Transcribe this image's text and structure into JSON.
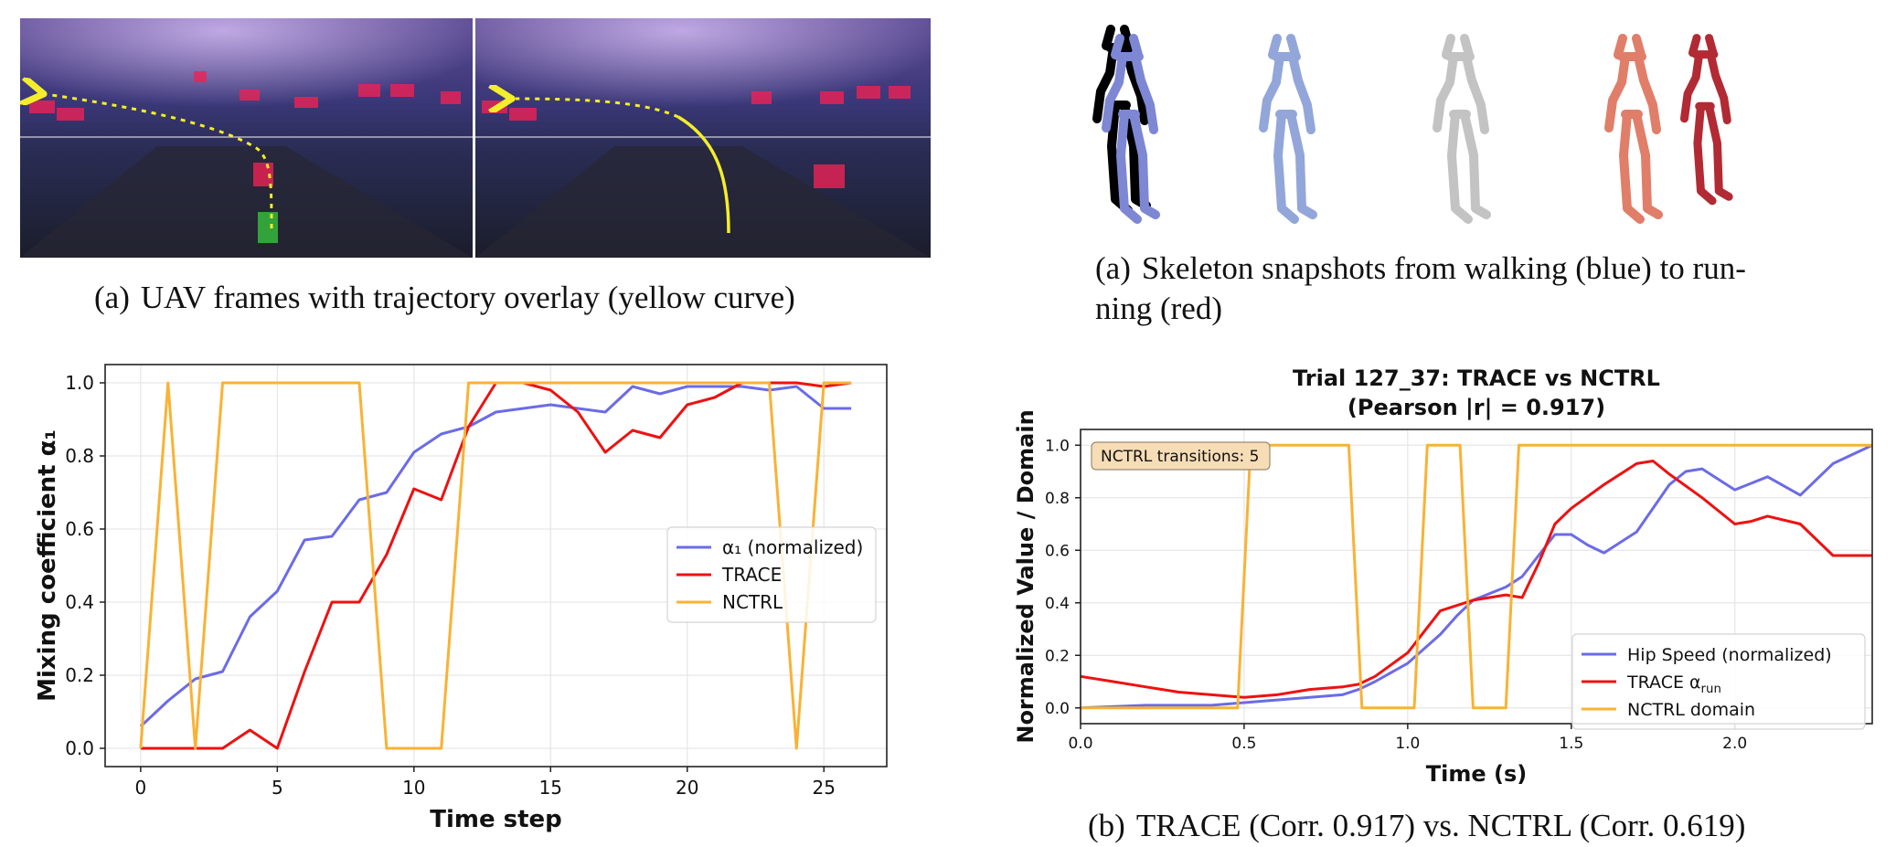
{
  "captions": {
    "uav": {
      "tag": "(a)",
      "text": "UAV frames with trajectory overlay (yellow curve)"
    },
    "skel_line1": {
      "tag": "(a)",
      "text": "Skeleton snapshots from walking (blue) to run-"
    },
    "skel_line2": "ning (red)",
    "trace": {
      "tag": "(b)",
      "text": "TRACE (Corr. 0.917) vs. NCTRL (Corr. 0.619)"
    }
  },
  "colors": {
    "blue": "#6b6be8",
    "red": "#ee1111",
    "orange": "#f9b234"
  },
  "chart_data": [
    {
      "type": "line",
      "xlabel": "Time step",
      "ylabel": "Mixing coefficient α₁",
      "xlim": [
        -1.3,
        27.3
      ],
      "ylim": [
        -0.05,
        1.05
      ],
      "xticks": [
        0,
        5,
        10,
        15,
        20,
        25
      ],
      "yticks": [
        "0.0",
        "0.2",
        "0.4",
        "0.6",
        "0.8",
        "1.0"
      ],
      "grid": true,
      "legend_position": "center-right",
      "series": [
        {
          "name": "α₁ (normalized)",
          "color": "#6b6be8",
          "x": [
            0,
            1,
            2,
            3,
            4,
            5,
            6,
            7,
            8,
            9,
            10,
            11,
            12,
            13,
            14,
            15,
            16,
            17,
            18,
            19,
            20,
            21,
            22,
            23,
            24,
            25,
            26
          ],
          "y": [
            0.06,
            0.13,
            0.19,
            0.21,
            0.36,
            0.43,
            0.57,
            0.58,
            0.68,
            0.7,
            0.81,
            0.86,
            0.88,
            0.92,
            0.93,
            0.94,
            0.93,
            0.92,
            0.99,
            0.97,
            0.99,
            0.99,
            0.99,
            0.98,
            0.99,
            0.93,
            0.93
          ]
        },
        {
          "name": "TRACE",
          "color": "#ee1111",
          "x": [
            0,
            1,
            2,
            3,
            4,
            5,
            6,
            7,
            8,
            9,
            10,
            11,
            12,
            13,
            14,
            15,
            16,
            17,
            18,
            19,
            20,
            21,
            22,
            23,
            24,
            25,
            26
          ],
          "y": [
            0.0,
            0.0,
            0.0,
            0.0,
            0.05,
            0.0,
            0.21,
            0.4,
            0.4,
            0.53,
            0.71,
            0.68,
            0.88,
            1.0,
            1.0,
            0.98,
            0.92,
            0.81,
            0.87,
            0.85,
            0.94,
            0.96,
            1.0,
            1.0,
            1.0,
            0.99,
            1.0
          ]
        },
        {
          "name": "NCTRL",
          "color": "#f9b234",
          "x": [
            0,
            1,
            2,
            3,
            4,
            5,
            6,
            7,
            8,
            9,
            10,
            11,
            12,
            13,
            14,
            15,
            16,
            17,
            18,
            19,
            20,
            21,
            22,
            23,
            24,
            25,
            26
          ],
          "y": [
            0,
            1,
            0,
            1,
            1,
            1,
            1,
            1,
            1,
            0,
            0,
            0,
            1,
            1,
            1,
            1,
            1,
            1,
            1,
            1,
            1,
            1,
            1,
            1,
            0,
            1,
            1
          ]
        }
      ]
    },
    {
      "type": "line",
      "title_line1": "Trial 127_37: TRACE vs NCTRL",
      "title_line2": "(Pearson |r| = 0.917)",
      "annotation": "NCTRL transitions: 5",
      "xlabel": "Time (s)",
      "ylabel": "Normalized Value / Domain",
      "xlim": [
        0,
        2.42
      ],
      "ylim": [
        -0.06,
        1.06
      ],
      "xticks": [
        "0.0",
        "0.5",
        "1.0",
        "1.5",
        "2.0"
      ],
      "yticks": [
        "0.0",
        "0.2",
        "0.4",
        "0.6",
        "0.8",
        "1.0"
      ],
      "grid": true,
      "legend_position": "lower-right",
      "series": [
        {
          "name": "Hip Speed (normalized)",
          "color": "#6b6be8",
          "x": [
            0,
            0.2,
            0.4,
            0.5,
            0.6,
            0.7,
            0.8,
            0.85,
            0.9,
            1.0,
            1.1,
            1.15,
            1.2,
            1.3,
            1.35,
            1.4,
            1.45,
            1.5,
            1.55,
            1.6,
            1.7,
            1.8,
            1.85,
            1.9,
            1.95,
            2.0,
            2.1,
            2.2,
            2.3,
            2.42
          ],
          "y": [
            0.0,
            0.01,
            0.01,
            0.02,
            0.03,
            0.04,
            0.05,
            0.07,
            0.1,
            0.17,
            0.28,
            0.35,
            0.41,
            0.46,
            0.5,
            0.58,
            0.66,
            0.66,
            0.62,
            0.59,
            0.67,
            0.85,
            0.9,
            0.91,
            0.87,
            0.83,
            0.88,
            0.81,
            0.93,
            1.0
          ]
        },
        {
          "name": "TRACE α_run",
          "color": "#ee1111",
          "x": [
            0,
            0.1,
            0.2,
            0.3,
            0.4,
            0.5,
            0.6,
            0.7,
            0.8,
            0.85,
            0.9,
            1.0,
            1.05,
            1.1,
            1.2,
            1.3,
            1.35,
            1.4,
            1.45,
            1.5,
            1.6,
            1.7,
            1.75,
            1.8,
            1.9,
            2.0,
            2.05,
            2.1,
            2.2,
            2.3,
            2.42
          ],
          "y": [
            0.12,
            0.1,
            0.08,
            0.06,
            0.05,
            0.04,
            0.05,
            0.07,
            0.08,
            0.09,
            0.12,
            0.21,
            0.29,
            0.37,
            0.41,
            0.43,
            0.42,
            0.55,
            0.7,
            0.76,
            0.85,
            0.93,
            0.94,
            0.89,
            0.8,
            0.7,
            0.71,
            0.73,
            0.7,
            0.58,
            0.58
          ]
        },
        {
          "name": "NCTRL domain",
          "color": "#f9b234",
          "x": [
            0,
            0.48,
            0.52,
            0.82,
            0.86,
            1.02,
            1.06,
            1.16,
            1.2,
            1.3,
            1.34,
            2.42
          ],
          "y": [
            0,
            0,
            1,
            1,
            0,
            0,
            1,
            1,
            0,
            0,
            1,
            1
          ]
        }
      ]
    }
  ]
}
